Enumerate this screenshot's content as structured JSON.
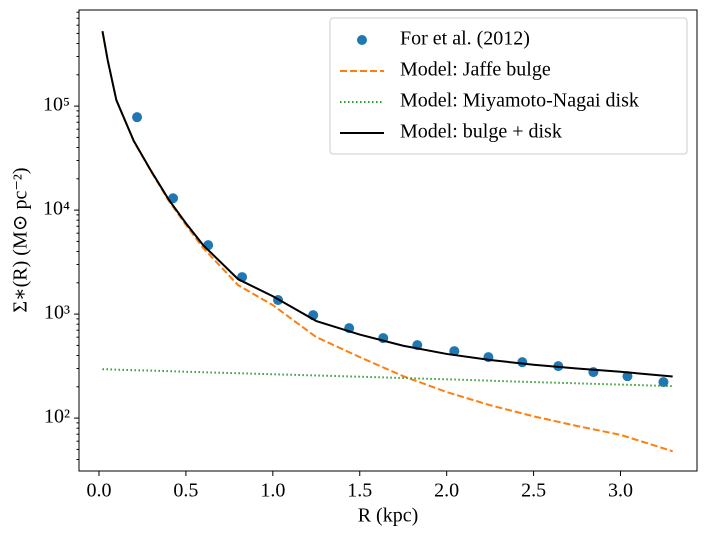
{
  "chart_data": {
    "type": "mixed",
    "xlabel": "R (kpc)",
    "ylabel": "Σ∗(R) (M⊙ pc⁻²)",
    "xlim": [
      -0.115,
      3.44
    ],
    "xticks": [
      {
        "value": 0,
        "label": "0.0"
      },
      0.5,
      {
        "value": 1,
        "label": "1.0"
      },
      1.5,
      {
        "value": 2,
        "label": "2.0"
      },
      2.5,
      {
        "value": 3,
        "label": "3.0"
      }
    ],
    "ylim": [
      31,
      840000
    ],
    "yscale": "log",
    "yticks": [
      {
        "value": 100,
        "label": "10²"
      },
      {
        "value": 1000,
        "label": "10³"
      },
      {
        "value": 10000,
        "label": "10⁴"
      },
      {
        "value": 100000,
        "label": "10⁵"
      }
    ],
    "legend": "upper right",
    "series": [
      {
        "name": "For et al. (2012)",
        "type": "scatter",
        "color": "#1f77b4",
        "x": [
          0.219,
          0.426,
          0.628,
          0.823,
          1.03,
          1.232,
          1.439,
          1.635,
          1.831,
          2.044,
          2.24,
          2.435,
          2.642,
          2.844,
          3.04,
          3.247
        ],
        "values": [
          78300,
          13000,
          4600,
          2270,
          1365,
          977,
          733,
          588,
          503,
          441,
          386,
          345,
          316,
          277,
          253,
          222
        ]
      },
      {
        "name": "Model: Jaffe bulge",
        "type": "line",
        "linestyle": "dashed",
        "color": "#ff7f0e",
        "x": [
          0.02,
          0.05,
          0.1,
          0.2,
          0.3,
          0.4,
          0.5,
          0.6,
          0.8,
          1.0,
          1.25,
          1.5,
          1.75,
          2.0,
          2.25,
          2.5,
          2.75,
          3.0,
          3.3
        ],
        "values": [
          526000,
          277000,
          114000,
          46000,
          23500,
          12400,
          7200,
          4310,
          1900,
          1220,
          601,
          386,
          253,
          178,
          133,
          104,
          84,
          69,
          48
        ]
      },
      {
        "name": "Model: Miyamoto-Nagai disk",
        "type": "line",
        "linestyle": "dotted",
        "color": "#2ca02c",
        "x": [
          0.02,
          0.05,
          0.1,
          0.2,
          0.3,
          0.4,
          0.5,
          0.6,
          0.8,
          1.0,
          1.25,
          1.5,
          1.75,
          2.0,
          2.25,
          2.5,
          2.75,
          3.0,
          3.3
        ],
        "values": [
          295,
          295,
          292,
          289,
          286,
          283,
          279,
          276,
          270,
          264,
          257,
          250,
          243,
          236,
          229,
          222,
          216,
          210,
          203
        ]
      },
      {
        "name": "Model: bulge + disk",
        "type": "line",
        "linestyle": "solid",
        "color": "#000000",
        "x": [
          0.02,
          0.05,
          0.1,
          0.2,
          0.3,
          0.4,
          0.5,
          0.6,
          0.8,
          1.0,
          1.25,
          1.5,
          1.75,
          2.0,
          2.25,
          2.5,
          2.75,
          3.0,
          3.3
        ],
        "values": [
          526000,
          277000,
          114000,
          46300,
          23800,
          12700,
          7480,
          4590,
          2170,
          1484,
          858,
          636,
          496,
          414,
          362,
          326,
          300,
          279,
          251
        ]
      }
    ]
  }
}
